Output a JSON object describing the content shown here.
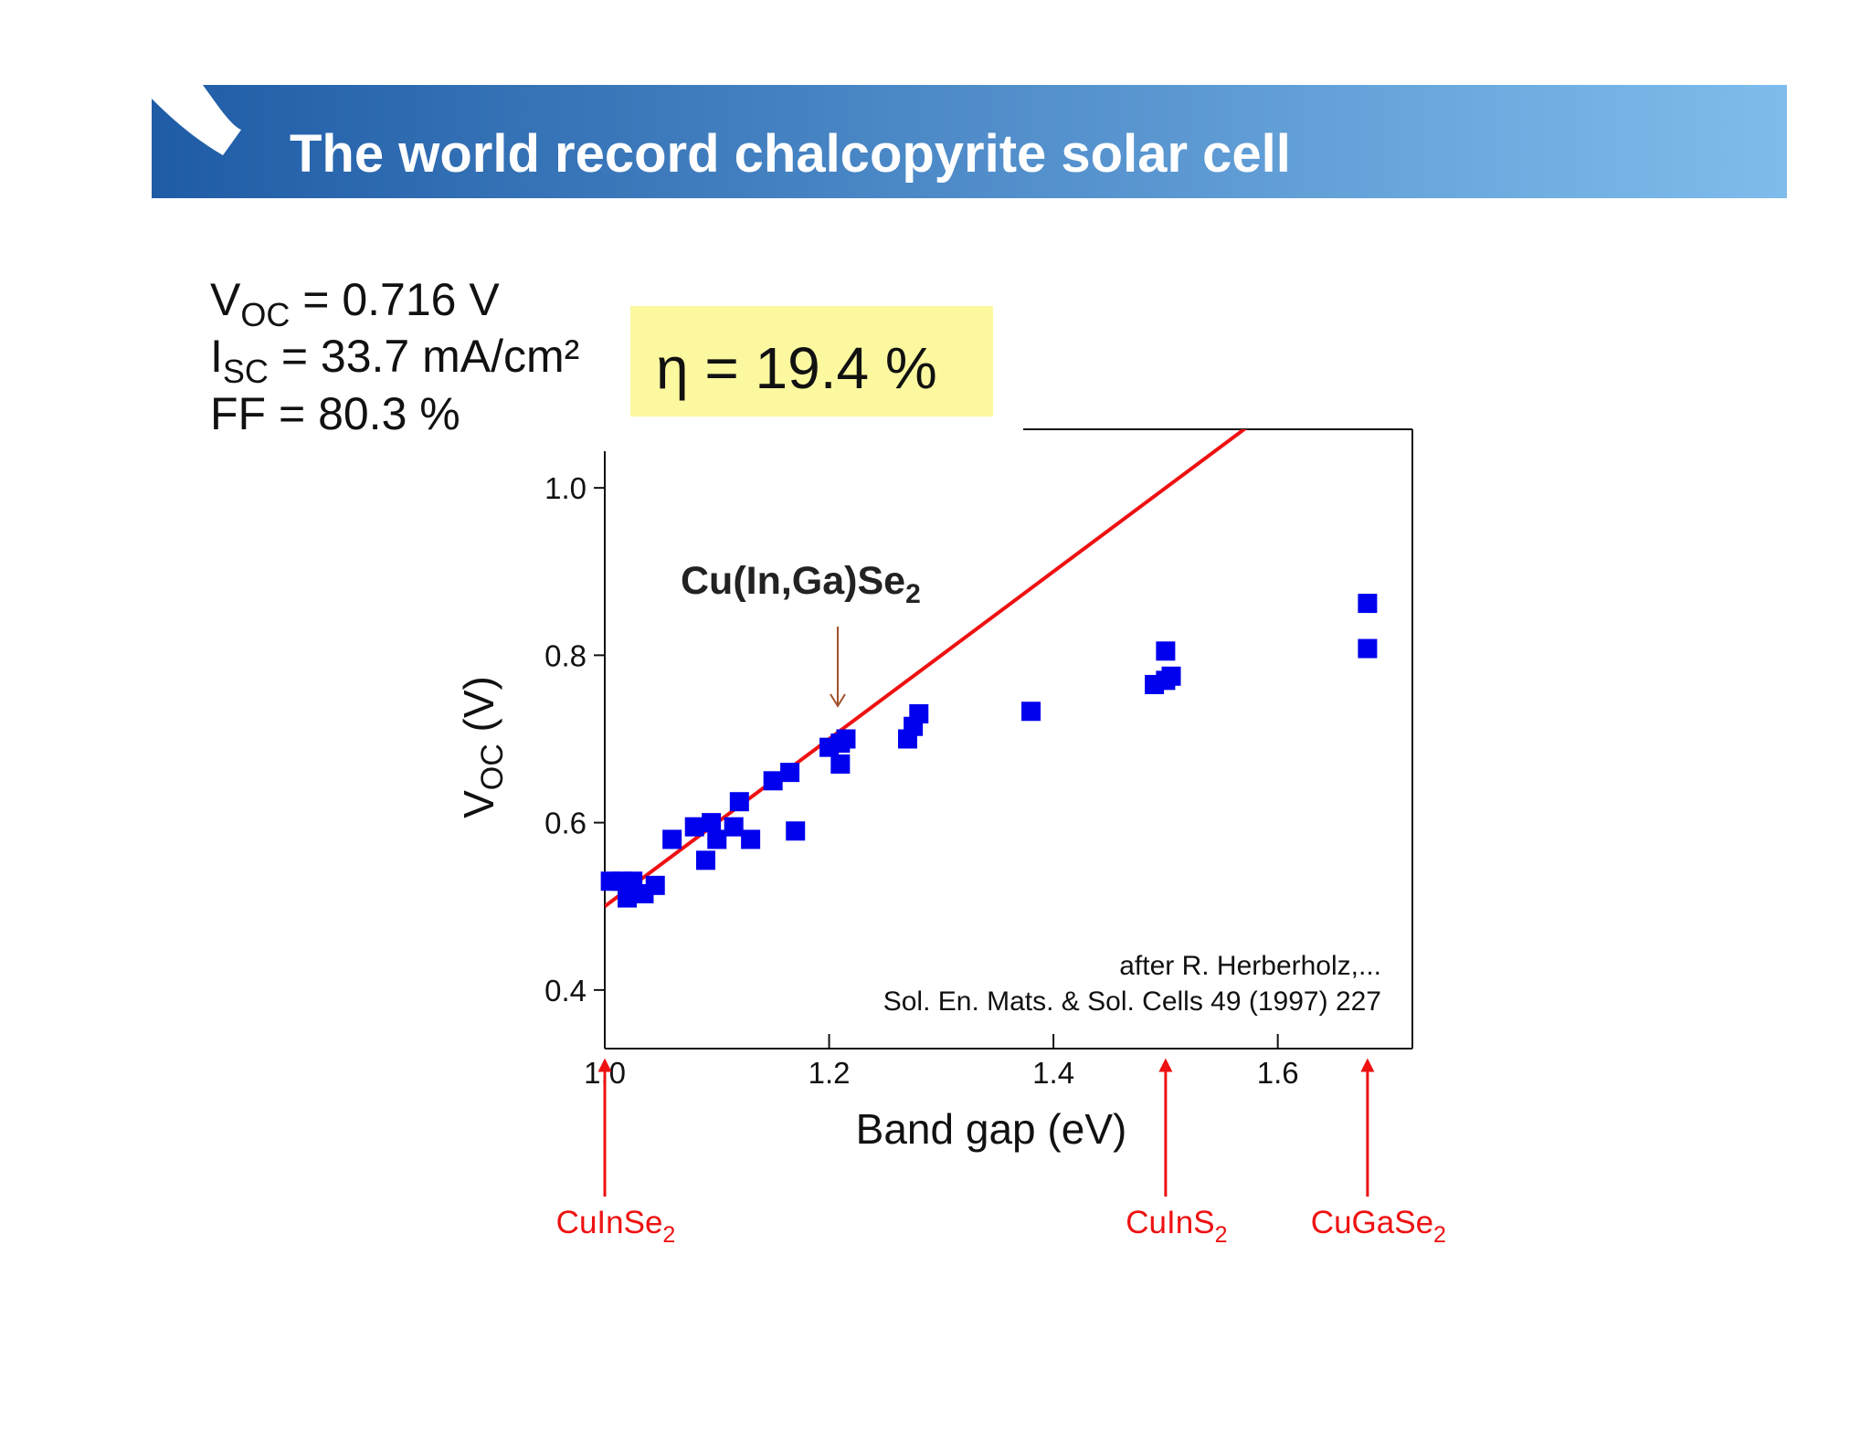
{
  "slide": {
    "title": "The world record chalcopyrite solar cell",
    "header_colors": [
      "#1f5ca6",
      "#7fbcec"
    ]
  },
  "parameters": {
    "voc": {
      "symbol": "V",
      "subscript": "OC",
      "text": " = 0.716 V"
    },
    "isc": {
      "symbol": "I",
      "subscript": "SC",
      "text": " = 33.7 mA/cm²"
    },
    "ff": {
      "text": "FF = 80.3 %"
    }
  },
  "efficiency": {
    "text": "η = 19.4 %",
    "highlight_color": "#fbf8a0"
  },
  "annotation": {
    "base": "Cu(In,Ga)Se",
    "subscript": "2",
    "arrow_color": "#a0522d",
    "points_to_x": 1.21
  },
  "credit": {
    "line1": "after R. Herberholz,...",
    "line2": "Sol. En. Mats. & Sol. Cells 49 (1997) 227"
  },
  "materials": [
    {
      "base": "CuInSe",
      "subscript": "2",
      "x": 1.0
    },
    {
      "base": "CuInS",
      "subscript": "2",
      "x": 1.5
    },
    {
      "base": "CuGaSe",
      "subscript": "2",
      "x": 1.68
    }
  ],
  "chart_data": {
    "type": "scatter",
    "xlabel": "Band gap (eV)",
    "ylabel": {
      "base": "V",
      "subscript": "OC",
      "suffix": " (V)"
    },
    "xlim": [
      1.0,
      1.72
    ],
    "ylim": [
      0.33,
      1.07
    ],
    "xticks": [
      1.0,
      1.2,
      1.4,
      1.6
    ],
    "xtick_labels": [
      "1.0",
      "1.2",
      "1.4",
      "1.6"
    ],
    "yticks": [
      0.4,
      0.6,
      0.8,
      1.0
    ],
    "ytick_labels": [
      "0.4",
      "0.6",
      "0.8",
      "1.0"
    ],
    "grid": false,
    "series": [
      {
        "marker": "square",
        "color": "#0000ee",
        "points": [
          [
            1.005,
            0.53
          ],
          [
            1.015,
            0.53
          ],
          [
            1.02,
            0.51
          ],
          [
            1.025,
            0.53
          ],
          [
            1.035,
            0.515
          ],
          [
            1.045,
            0.525
          ],
          [
            1.06,
            0.58
          ],
          [
            1.08,
            0.595
          ],
          [
            1.09,
            0.555
          ],
          [
            1.095,
            0.6
          ],
          [
            1.1,
            0.58
          ],
          [
            1.115,
            0.595
          ],
          [
            1.12,
            0.625
          ],
          [
            1.13,
            0.58
          ],
          [
            1.15,
            0.65
          ],
          [
            1.165,
            0.66
          ],
          [
            1.17,
            0.59
          ],
          [
            1.2,
            0.69
          ],
          [
            1.21,
            0.695
          ],
          [
            1.21,
            0.67
          ],
          [
            1.215,
            0.7
          ],
          [
            1.27,
            0.7
          ],
          [
            1.275,
            0.715
          ],
          [
            1.28,
            0.73
          ],
          [
            1.38,
            0.733
          ],
          [
            1.49,
            0.765
          ],
          [
            1.5,
            0.805
          ],
          [
            1.5,
            0.77
          ],
          [
            1.505,
            0.775
          ],
          [
            1.68,
            0.862
          ],
          [
            1.68,
            0.808
          ]
        ]
      },
      {
        "type": "line",
        "color": "#ee1111",
        "points": [
          [
            1.0,
            0.5
          ],
          [
            1.6,
            1.1
          ]
        ]
      }
    ]
  }
}
